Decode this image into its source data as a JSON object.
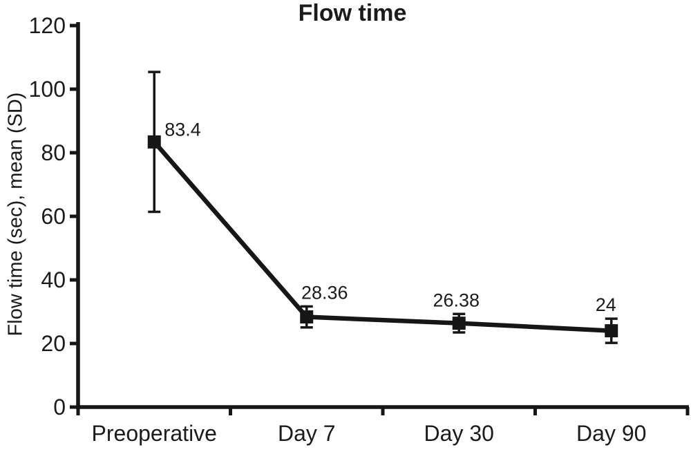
{
  "chart_data": {
    "type": "line",
    "title": "Flow time",
    "ylabel": "Flow time (sec), mean (SD)",
    "xlabel": "",
    "categories": [
      "Preoperative",
      "Day 7",
      "Day 30",
      "Day 90"
    ],
    "series": [
      {
        "name": "Flow time mean",
        "values": [
          83.4,
          28.36,
          26.38,
          24
        ],
        "sd": [
          22,
          3.3,
          2.9,
          3.8
        ]
      }
    ],
    "point_labels": [
      "83.4",
      "28.36",
      "26.38",
      "24"
    ],
    "ylim": [
      0,
      120
    ],
    "yticks": [
      0,
      20,
      40,
      60,
      80,
      100,
      120
    ],
    "grid": false,
    "legend": false,
    "marker": "filled-square",
    "error_bars": true,
    "line_color": "#161616",
    "text_color": "#1b1b1b",
    "background_color": "#ffffff"
  }
}
